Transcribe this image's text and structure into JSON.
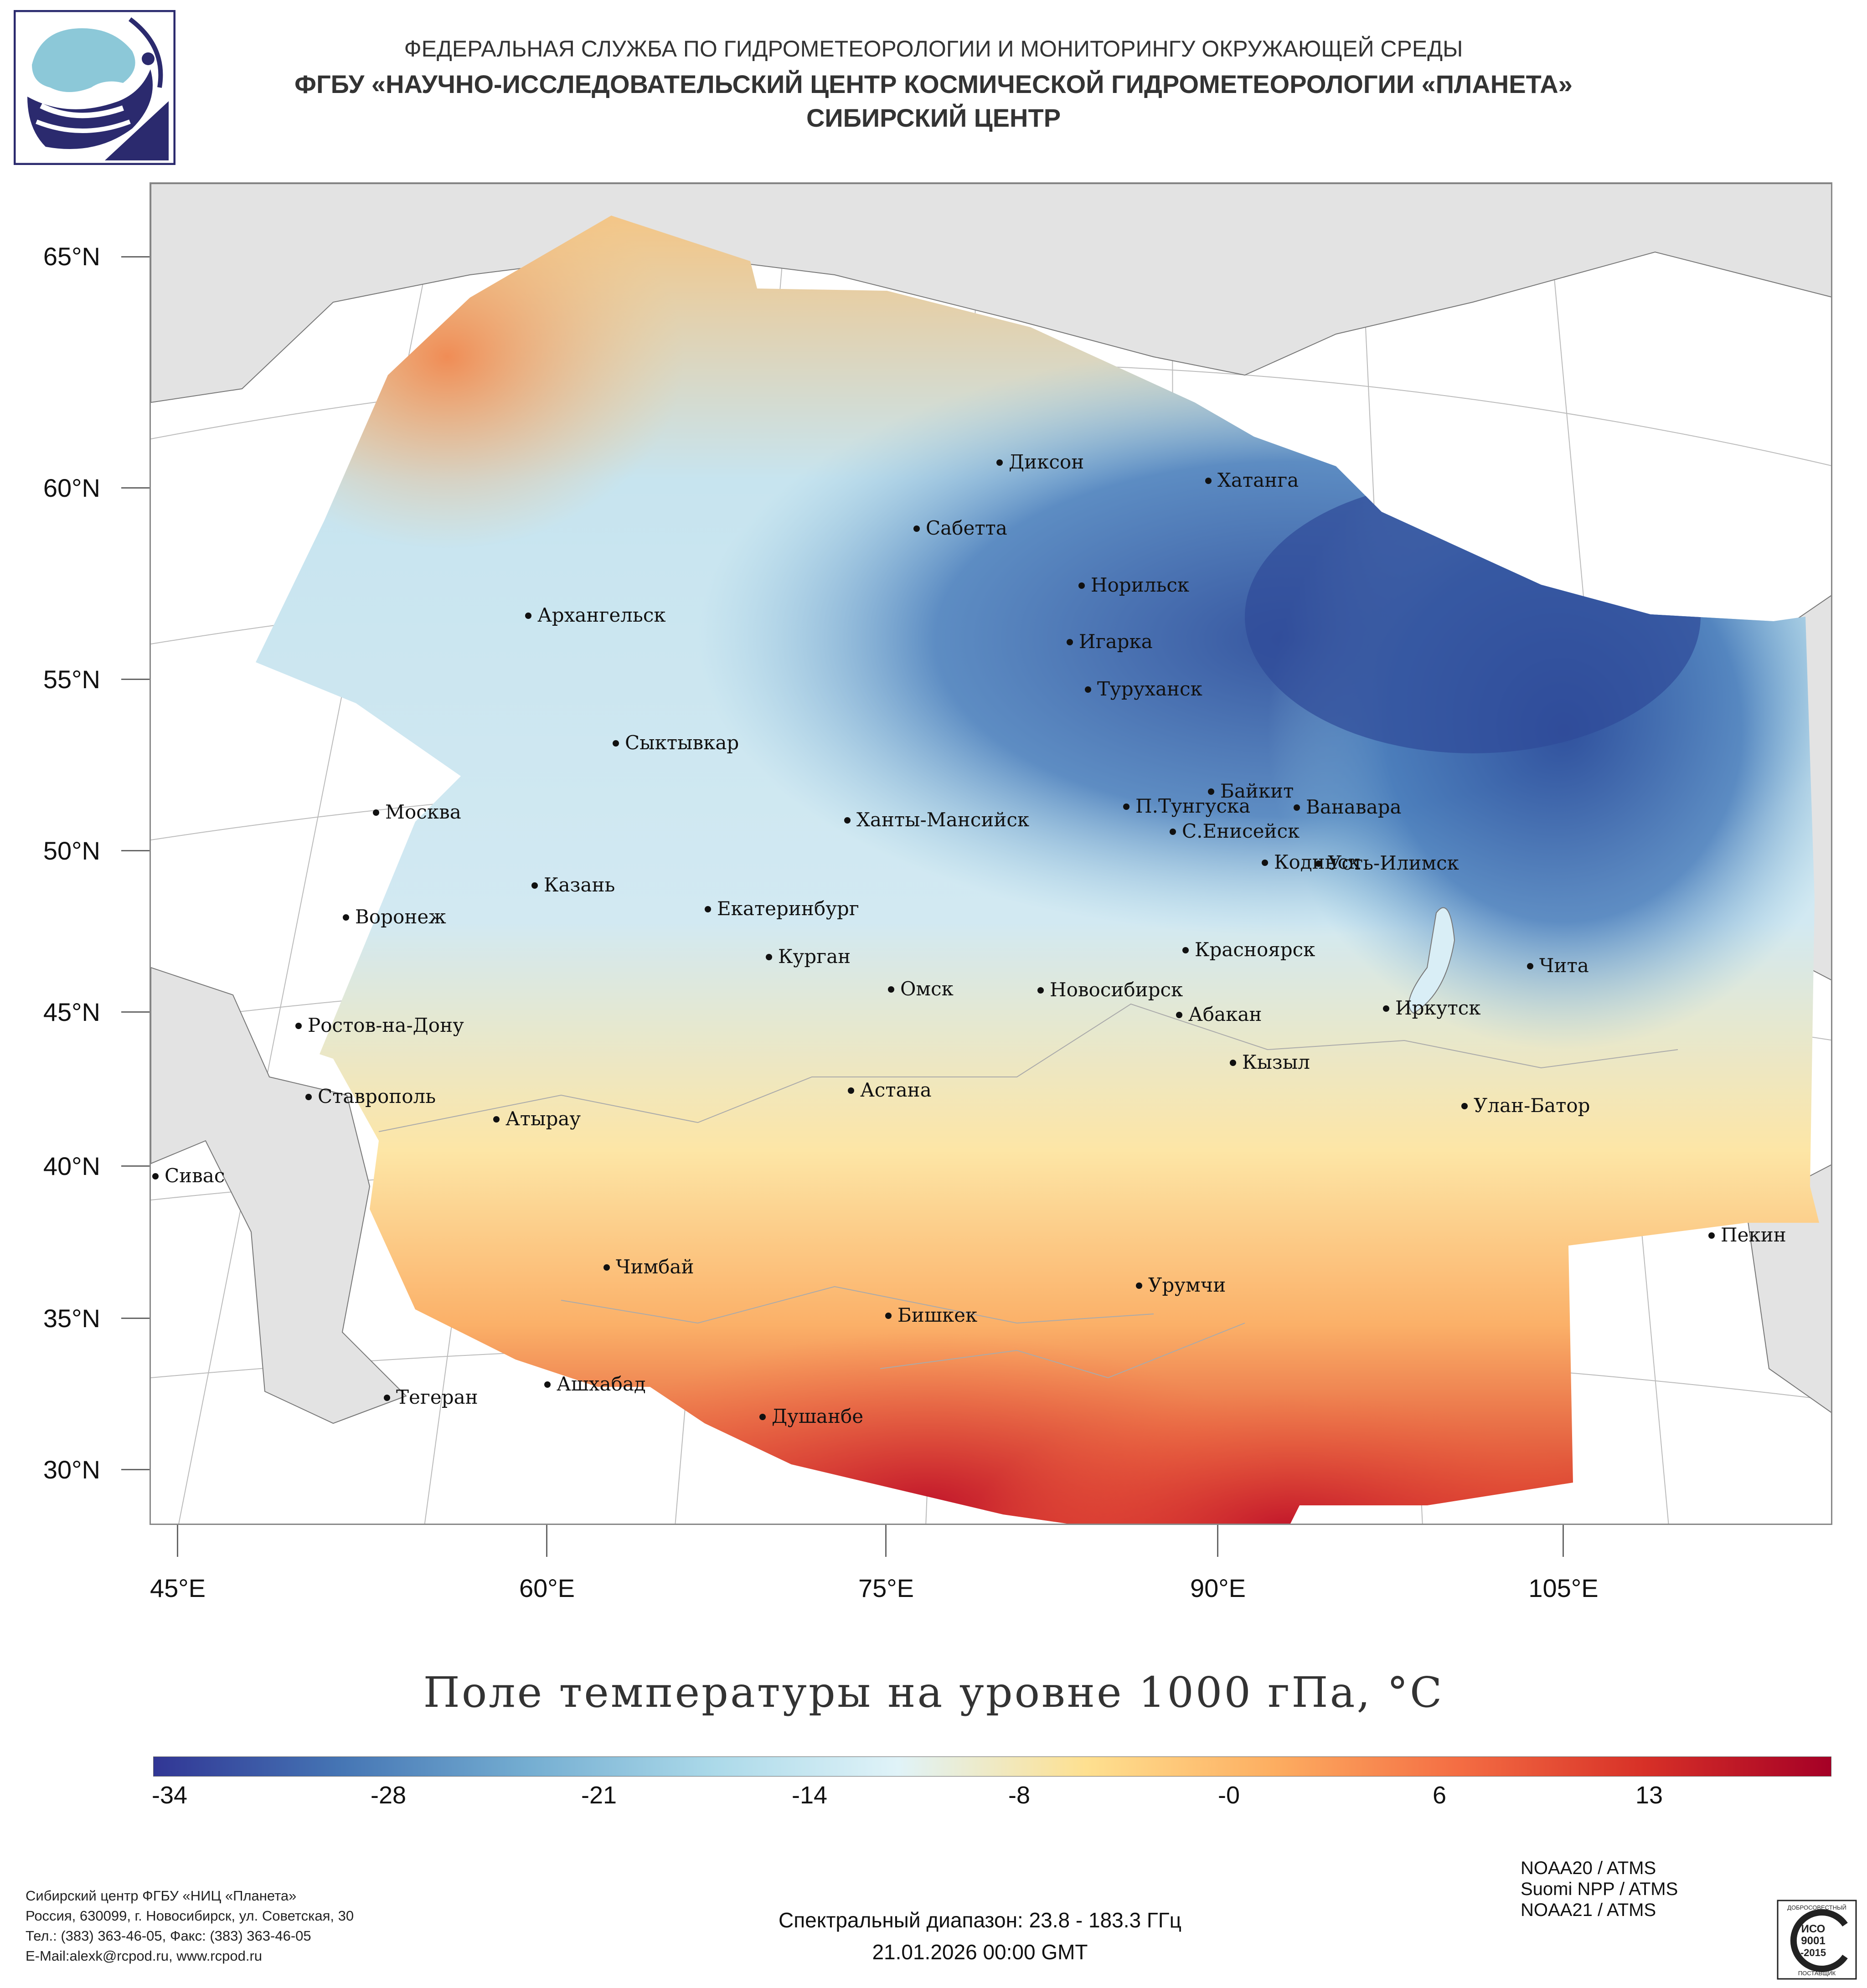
{
  "header": {
    "line1": "ФЕДЕРАЛЬНАЯ СЛУЖБА ПО ГИДРОМЕТЕОРОЛОГИИ И МОНИТОРИНГУ ОКРУЖАЮЩЕЙ СРЕДЫ",
    "line2": "ФГБУ «НАУЧНО-ИССЛЕДОВАТЕЛЬСКИЙ ЦЕНТР КОСМИЧЕСКОЙ ГИДРОМЕТЕОРОЛОГИИ «ПЛАНЕТА»",
    "line3": "СИБИРСКИЙ ЦЕНТР"
  },
  "map": {
    "title": "Поле температуры на уровне 1000 гПа, °C",
    "lat_labels": [
      "65°N",
      "60°N",
      "55°N",
      "50°N",
      "45°N",
      "40°N",
      "35°N",
      "30°N"
    ],
    "lon_labels": [
      "45°E",
      "60°E",
      "75°E",
      "90°E",
      "105°E"
    ],
    "cities": [
      {
        "name": "Диксон"
      },
      {
        "name": "Хатанга"
      },
      {
        "name": "Сабетта"
      },
      {
        "name": "Норильск"
      },
      {
        "name": "Архангельск"
      },
      {
        "name": "Игарка"
      },
      {
        "name": "Туруханск"
      },
      {
        "name": "Сыктывкар"
      },
      {
        "name": "Байкит"
      },
      {
        "name": "П.Тунгуска"
      },
      {
        "name": "Ванавара"
      },
      {
        "name": "Москва"
      },
      {
        "name": "Ханты-Мансийск"
      },
      {
        "name": "С.Енисейск"
      },
      {
        "name": "Кодинск"
      },
      {
        "name": "Усть-Илимск"
      },
      {
        "name": "Казань"
      },
      {
        "name": "Екатеринбург"
      },
      {
        "name": "Воронеж"
      },
      {
        "name": "Красноярск"
      },
      {
        "name": "Курган"
      },
      {
        "name": "Чита"
      },
      {
        "name": "Омск"
      },
      {
        "name": "Новосибирск"
      },
      {
        "name": "Ростов-на-Дону"
      },
      {
        "name": "Иркутск"
      },
      {
        "name": "Абакан"
      },
      {
        "name": "Кызыл"
      },
      {
        "name": "Ставрополь"
      },
      {
        "name": "Астана"
      },
      {
        "name": "Улан-Батор"
      },
      {
        "name": "Атырау"
      },
      {
        "name": "Сивас"
      },
      {
        "name": "Пекин"
      },
      {
        "name": "Чимбай"
      },
      {
        "name": "Урумчи"
      },
      {
        "name": "Бишкек"
      },
      {
        "name": "Ашхабад"
      },
      {
        "name": "Тегеран"
      },
      {
        "name": "Душанбе"
      }
    ]
  },
  "colorbar": {
    "labels": [
      "-34",
      "-28",
      "-21",
      "-14",
      "-8",
      "-0",
      "6",
      "13"
    ],
    "colors": [
      "#313695",
      "#4575b4",
      "#74add1",
      "#abd9e9",
      "#e0f3f8",
      "#fee090",
      "#fdae61",
      "#f46d43",
      "#d73027",
      "#a50026"
    ]
  },
  "footer": {
    "org_lines": [
      "Сибирский центр ФГБУ «НИЦ «Планета»",
      "Россия, 630099, г. Новосибирск, ул. Советская, 30",
      "Тел.: (383) 363-46-05, Факс: (383) 363-46-05",
      "E-Mail:alexk@rcpod.ru, www.rcpod.ru"
    ],
    "spectral": "Спектральный диапазон: 23.8 - 183.3 ГГц",
    "datetime": "21.01.2026 00:00 GMT",
    "satellites": [
      "NOAA20 / ATMS",
      "Suomi NPP / ATMS",
      "NOAA21 / ATMS"
    ],
    "iso_badge": {
      "top": "ДОБРОСОВЕСТНЫЙ",
      "l1": "ИСО",
      "l2": "9001",
      "l3": "-2015",
      "bottom": "ПОСТАВЩИК"
    }
  }
}
